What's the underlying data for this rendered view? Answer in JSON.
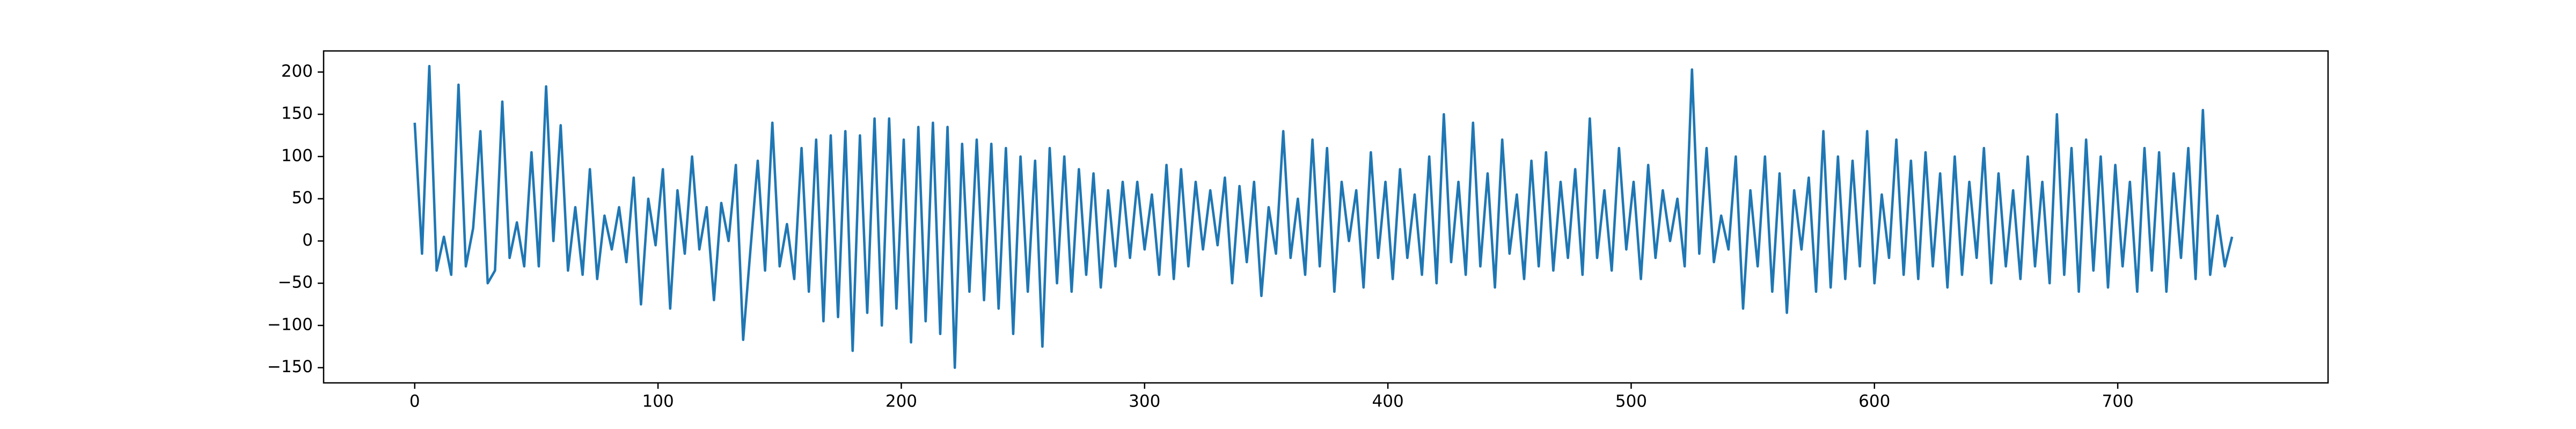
{
  "chart_data": {
    "type": "line",
    "color": "#1f77b4",
    "x": [
      0,
      3,
      6,
      9,
      12,
      15,
      18,
      21,
      24,
      27,
      30,
      33,
      36,
      39,
      42,
      45,
      48,
      51,
      54,
      57,
      60,
      63,
      66,
      69,
      72,
      75,
      78,
      81,
      84,
      87,
      90,
      93,
      96,
      99,
      102,
      105,
      108,
      111,
      114,
      117,
      120,
      123,
      126,
      129,
      132,
      135,
      138,
      141,
      144,
      147,
      150,
      153,
      156,
      159,
      162,
      165,
      168,
      171,
      174,
      177,
      180,
      183,
      186,
      189,
      192,
      195,
      198,
      201,
      204,
      207,
      210,
      213,
      216,
      219,
      222,
      225,
      228,
      231,
      234,
      237,
      240,
      243,
      246,
      249,
      252,
      255,
      258,
      261,
      264,
      267,
      270,
      273,
      276,
      279,
      282,
      285,
      288,
      291,
      294,
      297,
      300,
      303,
      306,
      309,
      312,
      315,
      318,
      321,
      324,
      327,
      330,
      333,
      336,
      339,
      342,
      345,
      348,
      351,
      354,
      357,
      360,
      363,
      366,
      369,
      372,
      375,
      378,
      381,
      384,
      387,
      390,
      393,
      396,
      399,
      402,
      405,
      408,
      411,
      414,
      417,
      420,
      423,
      426,
      429,
      432,
      435,
      438,
      441,
      444,
      447,
      450,
      453,
      456,
      459,
      462,
      465,
      468,
      471,
      474,
      477,
      480,
      483,
      486,
      489,
      492,
      495,
      498,
      501,
      504,
      507,
      510,
      513,
      516,
      519,
      522,
      525,
      528,
      531,
      534,
      537,
      540,
      543,
      546,
      549,
      552,
      555,
      558,
      561,
      564,
      567,
      570,
      573,
      576,
      579,
      582,
      585,
      588,
      591,
      594,
      597,
      600,
      603,
      606,
      609,
      612,
      615,
      618,
      621,
      624,
      627,
      630,
      633,
      636,
      639,
      642,
      645,
      648,
      651,
      654,
      657,
      660,
      663,
      666,
      669,
      672,
      675,
      678,
      681,
      684,
      687,
      690,
      693,
      696,
      699,
      702,
      705,
      708,
      711,
      714,
      717,
      720,
      723,
      726,
      729,
      732,
      735,
      738,
      741,
      744,
      747
    ],
    "values": [
      140,
      -15,
      207,
      -35,
      5,
      -40,
      185,
      -30,
      15,
      130,
      -50,
      -35,
      165,
      -20,
      22,
      -30,
      105,
      -30,
      183,
      0,
      137,
      -35,
      40,
      -40,
      85,
      -45,
      30,
      -10,
      40,
      -25,
      75,
      -75,
      50,
      -5,
      85,
      -80,
      60,
      -15,
      100,
      -10,
      40,
      -70,
      45,
      0,
      90,
      -117,
      -10,
      95,
      -35,
      140,
      -30,
      20,
      -45,
      110,
      -60,
      120,
      -95,
      125,
      -90,
      130,
      -130,
      125,
      -85,
      145,
      -100,
      145,
      -80,
      120,
      -120,
      135,
      -95,
      140,
      -110,
      135,
      -150,
      115,
      -60,
      120,
      -70,
      115,
      -80,
      110,
      -110,
      100,
      -60,
      95,
      -125,
      110,
      -50,
      100,
      -60,
      85,
      -40,
      80,
      -55,
      60,
      -30,
      70,
      -20,
      70,
      -10,
      55,
      -40,
      90,
      -45,
      85,
      -30,
      70,
      -10,
      60,
      -5,
      75,
      -50,
      65,
      -25,
      70,
      -65,
      40,
      -15,
      130,
      -20,
      50,
      -40,
      120,
      -30,
      110,
      -60,
      70,
      0,
      60,
      -55,
      105,
      -20,
      70,
      -45,
      85,
      -20,
      55,
      -40,
      100,
      -50,
      150,
      -25,
      70,
      -40,
      140,
      -30,
      80,
      -55,
      120,
      -15,
      55,
      -45,
      95,
      -30,
      105,
      -35,
      70,
      -20,
      85,
      -40,
      145,
      -20,
      60,
      -35,
      110,
      -10,
      70,
      -45,
      90,
      -20,
      60,
      0,
      50,
      -30,
      203,
      -15,
      110,
      -25,
      30,
      -10,
      100,
      -80,
      60,
      -30,
      100,
      -60,
      80,
      -85,
      60,
      -10,
      75,
      -60,
      130,
      -55,
      100,
      -45,
      95,
      -30,
      130,
      -50,
      55,
      -20,
      120,
      -40,
      95,
      -45,
      105,
      -30,
      80,
      -55,
      100,
      -40,
      70,
      -20,
      110,
      -50,
      80,
      -30,
      60,
      -45,
      100,
      -30,
      70,
      -50,
      150,
      -40,
      110,
      -60,
      120,
      -35,
      100,
      -55,
      90,
      -30,
      70,
      -60,
      110,
      -35,
      105,
      -60,
      80,
      -20,
      110,
      -45,
      155,
      -40,
      30,
      -30,
      5
    ],
    "xlim": [
      -37.45,
      786.45
    ],
    "ylim": [
      -168,
      225
    ],
    "xticks": [
      0,
      100,
      200,
      300,
      400,
      500,
      600,
      700
    ],
    "yticks": [
      {
        "value": -150,
        "label": "−150"
      },
      {
        "value": -100,
        "label": "−100"
      },
      {
        "value": -50,
        "label": "−50"
      },
      0,
      50,
      100,
      150,
      200
    ]
  }
}
